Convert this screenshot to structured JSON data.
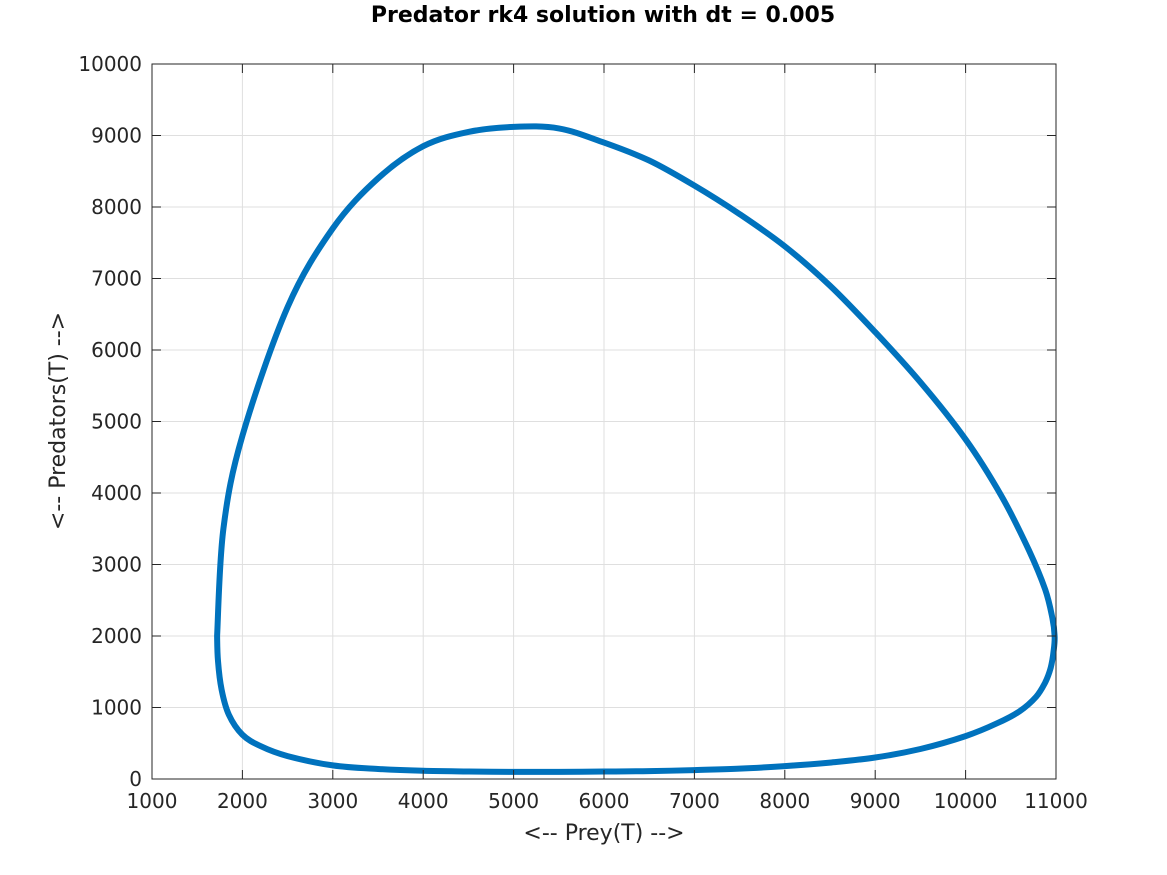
{
  "chart_data": {
    "type": "line",
    "title": "Predator rk4 solution with dt = 0.005",
    "xlabel": "<-- Prey(T) -->",
    "ylabel": "<-- Predators(T) -->",
    "xlim": [
      1000,
      11000
    ],
    "ylim": [
      0,
      10000
    ],
    "xticks": [
      1000,
      2000,
      3000,
      4000,
      5000,
      6000,
      7000,
      8000,
      9000,
      10000,
      11000
    ],
    "yticks": [
      0,
      1000,
      2000,
      3000,
      4000,
      5000,
      6000,
      7000,
      8000,
      9000,
      10000
    ],
    "grid": true,
    "legend": "none",
    "series": [
      {
        "color": "#0072bd",
        "x": [
          1720,
          1790,
          2000,
          2500,
          3000,
          3500,
          4000,
          4500,
          5000,
          5500,
          6000,
          6500,
          7000,
          7500,
          8000,
          8500,
          9000,
          9500,
          10000,
          10400,
          10700,
          10880,
          10960,
          10985,
          10975,
          10940,
          10880,
          10780,
          10600,
          10350,
          10000,
          9500,
          9000,
          8500,
          8000,
          7500,
          7000,
          6500,
          6000,
          5500,
          5000,
          4500,
          4000,
          3500,
          3000,
          2500,
          2200,
          2000,
          1850,
          1770,
          1730,
          1720
        ],
        "y": [
          2000,
          3500,
          4800,
          6600,
          7700,
          8400,
          8850,
          9050,
          9120,
          9100,
          8900,
          8650,
          8300,
          7900,
          7450,
          6900,
          6250,
          5550,
          4750,
          3950,
          3200,
          2650,
          2250,
          2000,
          1800,
          1550,
          1350,
          1150,
          950,
          780,
          600,
          420,
          300,
          230,
          180,
          145,
          125,
          110,
          105,
          100,
          100,
          105,
          115,
          140,
          190,
          320,
          460,
          620,
          900,
          1250,
          1650,
          2000
        ]
      }
    ]
  }
}
